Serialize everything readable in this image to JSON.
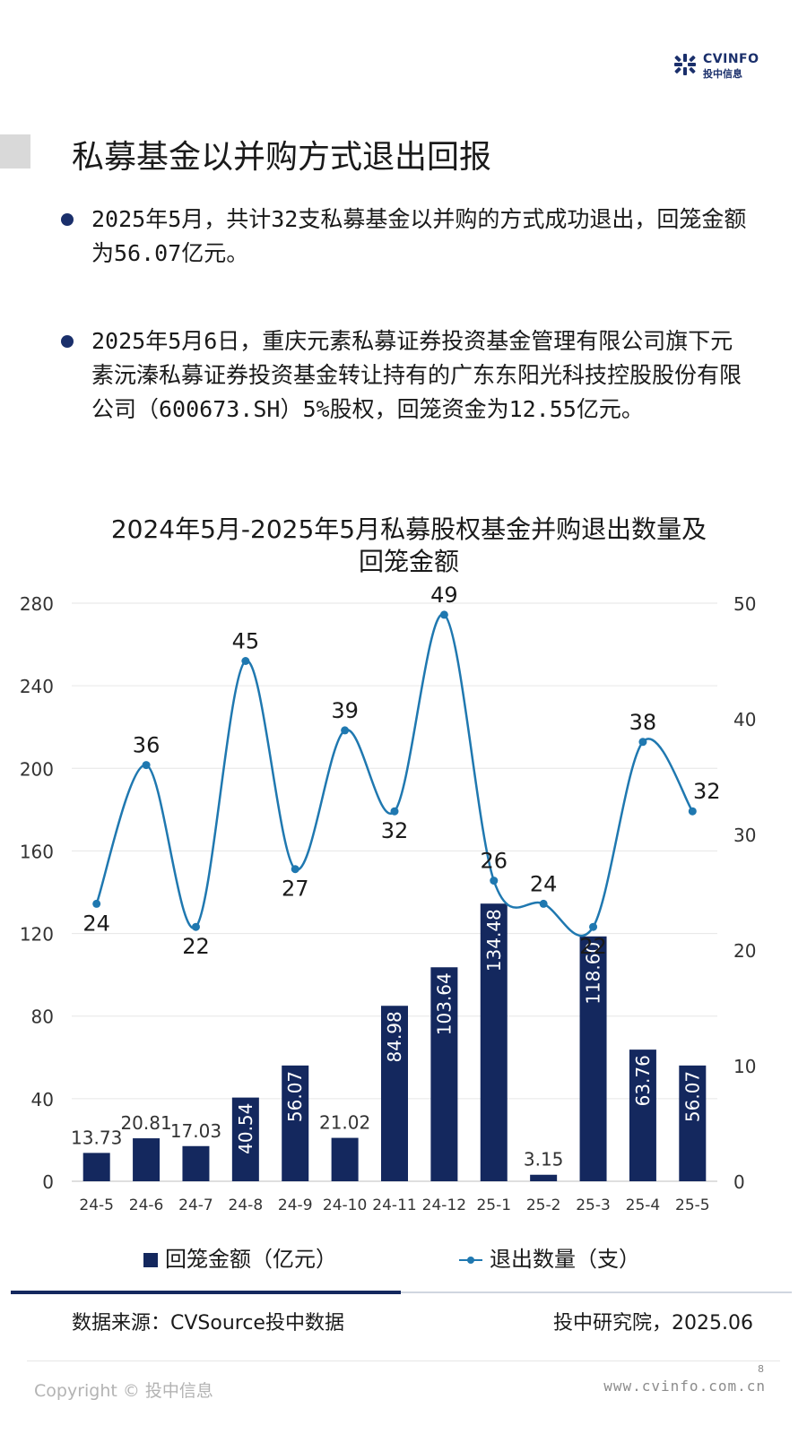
{
  "brand": {
    "logo_top": "CVINFO",
    "logo_bottom": "投中信息",
    "accent": "#14285e",
    "line_color": "#1f78b0"
  },
  "page_title": "私募基金以并购方式退出回报",
  "bullets": [
    "2025年5月，共计32支私募基金以并购的方式成功退出，回笼金额为56.07亿元。",
    "2025年5月6日，重庆元素私募证券投资基金管理有限公司旗下元素沅溱私募证券投资基金转让持有的广东东阳光科技控股股份有限公司（600673.SH）5%股权，回笼资金为12.55亿元。"
  ],
  "chart_data": {
    "type": "bar",
    "title": "2024年5月-2025年5月私募股权基金并购退出数量及回笼金额",
    "title_lines": [
      "2024年5月-2025年5月私募股权基金并购退出数量及",
      "回笼金额"
    ],
    "categories": [
      "24-5",
      "24-6",
      "24-7",
      "24-8",
      "24-9",
      "24-10",
      "24-11",
      "24-12",
      "25-1",
      "25-2",
      "25-3",
      "25-4",
      "25-5"
    ],
    "series": [
      {
        "name": "回笼金额（亿元）",
        "type": "bar",
        "axis": "left",
        "values": [
          13.73,
          20.81,
          17.03,
          40.54,
          56.07,
          21.02,
          84.98,
          103.64,
          134.48,
          3.15,
          118.6,
          63.76,
          56.07
        ],
        "labels": [
          "13.73",
          "20.81",
          "17.03",
          "40.54",
          "56.07",
          "21.02",
          "84.98",
          "103.64",
          "134.48",
          "3.15",
          "118.60",
          "63.76",
          "56.07"
        ]
      },
      {
        "name": "退出数量（支）",
        "type": "line",
        "axis": "right",
        "values": [
          24,
          36,
          22,
          45,
          27,
          39,
          32,
          49,
          26,
          24,
          22,
          38,
          32
        ]
      }
    ],
    "y_left": {
      "min": 0,
      "max": 280,
      "ticks": [
        0,
        40,
        80,
        120,
        160,
        200,
        240,
        280
      ]
    },
    "y_right": {
      "min": 0,
      "max": 50,
      "ticks": [
        0,
        10,
        20,
        30,
        40,
        50
      ]
    },
    "grid": true,
    "legend_position": "bottom"
  },
  "legend": {
    "bar_label": "回笼金额（亿元）",
    "line_label": "退出数量（支）"
  },
  "source": "数据来源：CVSource投中数据",
  "org_date": "投中研究院，2025.06",
  "page_number": "8",
  "copyright": "Copyright © 投中信息",
  "website": "www.cvinfo.com.cn"
}
